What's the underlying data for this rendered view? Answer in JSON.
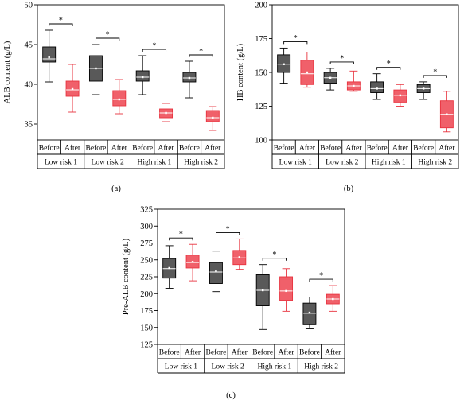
{
  "colors": {
    "before": "#595959",
    "after": "#f0606a",
    "after_stroke": "#e8333f",
    "axis": "#000000"
  },
  "chart_data": [
    {
      "type": "box",
      "panel_label": "(a)",
      "ylabel": "ALB content (g/L)",
      "ylim": [
        33,
        50
      ],
      "yticks": [
        35,
        40,
        45,
        50
      ],
      "group_row": {
        "before": "Before",
        "after": "After"
      },
      "groups": [
        "Low risk 1",
        "Low risk 2",
        "High risk 1",
        "High risk 2"
      ],
      "significance": [
        "*",
        "*",
        "*",
        "*"
      ],
      "boxes": [
        {
          "group": "Low risk 1",
          "series": "Before",
          "min": 40.3,
          "q1": 42.8,
          "median": 43.2,
          "mean": 43.4,
          "q3": 44.7,
          "max": 46.8
        },
        {
          "group": "Low risk 1",
          "series": "After",
          "min": 36.5,
          "q1": 38.5,
          "median": 39.3,
          "mean": 39.4,
          "q3": 40.4,
          "max": 42.5
        },
        {
          "group": "Low risk 2",
          "series": "Before",
          "min": 38.7,
          "q1": 40.4,
          "median": 42.0,
          "mean": 42.0,
          "q3": 43.6,
          "max": 45.0
        },
        {
          "group": "Low risk 2",
          "series": "After",
          "min": 36.3,
          "q1": 37.3,
          "median": 38.1,
          "mean": 38.1,
          "q3": 39.2,
          "max": 40.6
        },
        {
          "group": "High risk 1",
          "series": "Before",
          "min": 38.7,
          "q1": 40.4,
          "median": 40.9,
          "mean": 40.9,
          "q3": 41.7,
          "max": 43.6
        },
        {
          "group": "High risk 1",
          "series": "After",
          "min": 35.3,
          "q1": 35.8,
          "median": 36.4,
          "mean": 36.4,
          "q3": 36.9,
          "max": 37.6
        },
        {
          "group": "High risk 2",
          "series": "Before",
          "min": 38.3,
          "q1": 40.3,
          "median": 40.8,
          "mean": 40.8,
          "q3": 41.5,
          "max": 42.9
        },
        {
          "group": "High risk 2",
          "series": "After",
          "min": 34.2,
          "q1": 35.3,
          "median": 35.8,
          "mean": 35.8,
          "q3": 36.7,
          "max": 37.2
        }
      ]
    },
    {
      "type": "box",
      "panel_label": "(b)",
      "ylabel": "HB content (g/L)",
      "ylim": [
        100,
        200
      ],
      "yticks": [
        100,
        125,
        150,
        175,
        200
      ],
      "group_row": {
        "before": "Before",
        "after": "After"
      },
      "groups": [
        "Low risk 1",
        "Low risk 2",
        "High risk 1",
        "High risk 2"
      ],
      "significance": [
        "*",
        "*",
        "*",
        "*"
      ],
      "boxes": [
        {
          "group": "Low risk 1",
          "series": "Before",
          "min": 142,
          "q1": 150,
          "median": 156,
          "mean": 156,
          "q3": 163,
          "max": 168
        },
        {
          "group": "Low risk 1",
          "series": "After",
          "min": 139,
          "q1": 141,
          "median": 149,
          "mean": 150,
          "q3": 159,
          "max": 165
        },
        {
          "group": "Low risk 2",
          "series": "Before",
          "min": 137,
          "q1": 142,
          "median": 146,
          "mean": 146,
          "q3": 150,
          "max": 153
        },
        {
          "group": "Low risk 2",
          "series": "After",
          "min": 136,
          "q1": 137,
          "median": 140,
          "mean": 140,
          "q3": 143,
          "max": 151
        },
        {
          "group": "High risk 1",
          "series": "Before",
          "min": 130,
          "q1": 135,
          "median": 138,
          "mean": 138,
          "q3": 143,
          "max": 149
        },
        {
          "group": "High risk 1",
          "series": "After",
          "min": 125,
          "q1": 128,
          "median": 133,
          "mean": 133,
          "q3": 137,
          "max": 141
        },
        {
          "group": "High risk 2",
          "series": "Before",
          "min": 130,
          "q1": 135,
          "median": 138,
          "mean": 138,
          "q3": 141,
          "max": 143
        },
        {
          "group": "High risk 2",
          "series": "After",
          "min": 106,
          "q1": 109,
          "median": 119,
          "mean": 119,
          "q3": 129,
          "max": 136
        }
      ]
    },
    {
      "type": "box",
      "panel_label": "(c)",
      "ylabel": "Pre-ALB content (g/L)",
      "ylim": [
        125,
        325
      ],
      "yticks": [
        125,
        150,
        175,
        200,
        225,
        250,
        275,
        300,
        325
      ],
      "group_row": {
        "before": "Before",
        "after": "After"
      },
      "groups": [
        "Low risk 1",
        "Low risk 2",
        "High risk 1",
        "High risk 2"
      ],
      "significance": [
        "*",
        "*",
        "*",
        "*"
      ],
      "boxes": [
        {
          "group": "Low risk 1",
          "series": "Before",
          "min": 208,
          "q1": 223,
          "median": 237,
          "mean": 238,
          "q3": 252,
          "max": 271
        },
        {
          "group": "Low risk 1",
          "series": "After",
          "min": 219,
          "q1": 238,
          "median": 246,
          "mean": 247,
          "q3": 257,
          "max": 273
        },
        {
          "group": "Low risk 2",
          "series": "Before",
          "min": 203,
          "q1": 215,
          "median": 232,
          "mean": 233,
          "q3": 246,
          "max": 263
        },
        {
          "group": "Low risk 2",
          "series": "After",
          "min": 236,
          "q1": 243,
          "median": 253,
          "mean": 254,
          "q3": 264,
          "max": 281
        },
        {
          "group": "High risk 1",
          "series": "Before",
          "min": 147,
          "q1": 182,
          "median": 205,
          "mean": 205,
          "q3": 228,
          "max": 243
        },
        {
          "group": "High risk 1",
          "series": "After",
          "min": 174,
          "q1": 190,
          "median": 204,
          "mean": 204,
          "q3": 225,
          "max": 237
        },
        {
          "group": "High risk 2",
          "series": "Before",
          "min": 148,
          "q1": 154,
          "median": 171,
          "mean": 172,
          "q3": 186,
          "max": 195
        },
        {
          "group": "High risk 2",
          "series": "After",
          "min": 174,
          "q1": 185,
          "median": 192,
          "mean": 192,
          "q3": 199,
          "max": 212
        }
      ]
    }
  ]
}
